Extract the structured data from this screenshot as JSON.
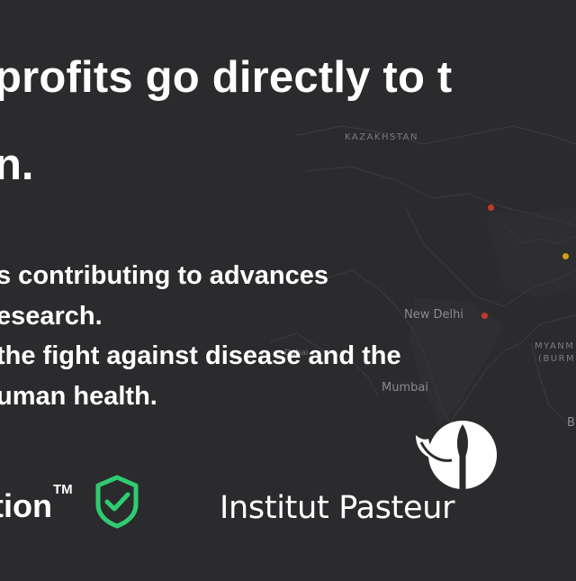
{
  "headline": {
    "line1": "profits go directly to t",
    "line2": "n."
  },
  "body_lines": [
    "s contributing to advances",
    "esearch.",
    "the fight against disease and the",
    "uman health."
  ],
  "map": {
    "labels": {
      "kazakhstan": "KAZAKHSTAN",
      "new_delhi": "New Delhi",
      "mumbai": "Mumbai",
      "dubai": "Dubai",
      "myanmar": "MYANM",
      "burma": "(BURM",
      "b": "B"
    },
    "dot_colors": [
      "#c0392b",
      "#d4a017",
      "#c0392b"
    ]
  },
  "partners": {
    "brand_text": "tion",
    "trademark": "TM",
    "shield_color": "#2ecc71",
    "pasteur_name": "Institut Pasteur"
  }
}
